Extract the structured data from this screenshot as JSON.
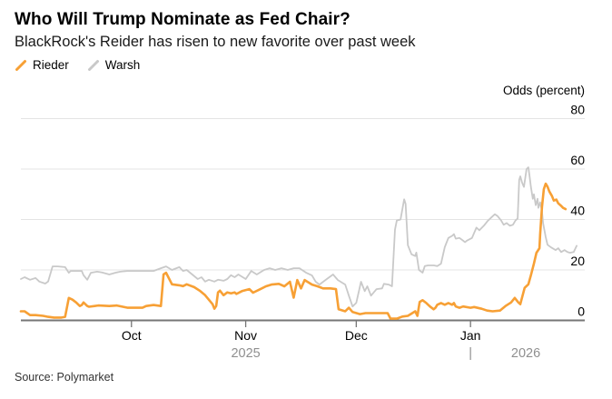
{
  "header": {
    "title": "Who Will Trump Nominate as Fed Chair?",
    "subtitle": "BlackRock's Reider has risen to new favorite over past week"
  },
  "legend": [
    {
      "label": "Rieder",
      "color": "#F7A035"
    },
    {
      "label": "Warsh",
      "color": "#C9C9C9"
    }
  ],
  "axis_title": "Odds (percent)",
  "source": "Source: Polymarket",
  "colors": {
    "rieder_orange": "#F7A035",
    "warsh_gray": "#C9C9C9",
    "gridline": "#E4E4E4",
    "axis": "#767676",
    "tick_label": "#000000",
    "year_label": "#8F8F8F"
  },
  "chart_data": {
    "type": "line",
    "title": "Who Will Trump Nominate as Fed Chair?",
    "subtitle": "BlackRock's Reider has risen to new favorite over past week",
    "ylabel": "Odds (percent)",
    "ylim": [
      0,
      80
    ],
    "y_ticks": [
      0,
      20,
      40,
      60,
      80
    ],
    "grid": "horizontal",
    "legend_position": "top-left",
    "x_domain": [
      "2025-09-01",
      "2026-02-01"
    ],
    "x_unit": "days since 2025-09-01",
    "x_ticks": [
      {
        "day": 30,
        "label": "Oct"
      },
      {
        "day": 61,
        "label": "Nov"
      },
      {
        "day": 91,
        "label": "Dec"
      },
      {
        "day": 122,
        "label": "Jan"
      }
    ],
    "year_labels": [
      {
        "day": 61,
        "label": "2025"
      },
      {
        "day": 122,
        "label": "|"
      },
      {
        "day": 137,
        "label": "2026"
      }
    ],
    "series": [
      {
        "name": "Rieder",
        "color": "#F7A035",
        "width": 2.6,
        "points": [
          [
            0,
            3.6
          ],
          [
            1,
            3.6
          ],
          [
            2.5,
            2.1
          ],
          [
            4,
            2.1
          ],
          [
            6,
            1.8
          ],
          [
            7.4,
            1.4
          ],
          [
            9,
            1.1
          ],
          [
            11,
            1.1
          ],
          [
            12,
            1.4
          ],
          [
            13,
            8.9
          ],
          [
            14,
            8.2
          ],
          [
            15,
            7.1
          ],
          [
            16,
            5.7
          ],
          [
            16.5,
            6.1
          ],
          [
            17,
            7.1
          ],
          [
            18,
            5.7
          ],
          [
            18.5,
            5.4
          ],
          [
            20,
            5.7
          ],
          [
            21,
            5.9
          ],
          [
            24,
            5.7
          ],
          [
            26,
            5.9
          ],
          [
            29,
            5.0
          ],
          [
            31,
            5.0
          ],
          [
            33,
            5.0
          ],
          [
            34,
            5.7
          ],
          [
            36,
            6.1
          ],
          [
            38,
            5.7
          ],
          [
            38.7,
            18.2
          ],
          [
            39.4,
            18.9
          ],
          [
            40,
            17.1
          ],
          [
            41,
            14.3
          ],
          [
            43,
            13.9
          ],
          [
            44,
            13.6
          ],
          [
            45,
            14.3
          ],
          [
            47,
            13.2
          ],
          [
            48.5,
            11.8
          ],
          [
            50,
            10.0
          ],
          [
            52,
            6.4
          ],
          [
            52.5,
            4.6
          ],
          [
            53,
            5.7
          ],
          [
            53.5,
            11.1
          ],
          [
            54,
            11.8
          ],
          [
            55,
            10.0
          ],
          [
            56,
            11.1
          ],
          [
            57,
            10.7
          ],
          [
            58,
            11.1
          ],
          [
            58.5,
            10.5
          ],
          [
            60,
            11.6
          ],
          [
            62,
            12.4
          ],
          [
            63,
            11.0
          ],
          [
            65,
            12.4
          ],
          [
            66.5,
            13.5
          ],
          [
            68,
            14.2
          ],
          [
            70,
            14.5
          ],
          [
            71.5,
            13.5
          ],
          [
            73,
            15.3
          ],
          [
            74,
            9.0
          ],
          [
            75,
            16.0
          ],
          [
            76,
            12.7
          ],
          [
            77,
            16.0
          ],
          [
            79,
            14.2
          ],
          [
            80.5,
            13.5
          ],
          [
            82,
            12.7
          ],
          [
            84,
            12.7
          ],
          [
            85.5,
            12.4
          ],
          [
            86.2,
            4.4
          ],
          [
            88,
            3.6
          ],
          [
            89,
            5.0
          ],
          [
            90,
            3.3
          ],
          [
            92,
            2.5
          ],
          [
            93.5,
            2.9
          ],
          [
            95,
            2.9
          ],
          [
            98,
            2.9
          ],
          [
            99.5,
            2.9
          ],
          [
            100.3,
            0.7
          ],
          [
            102,
            0.7
          ],
          [
            103.5,
            1.5
          ],
          [
            105,
            1.8
          ],
          [
            107,
            3.6
          ],
          [
            107.6,
            1.8
          ],
          [
            108.2,
            7.3
          ],
          [
            109,
            8.0
          ],
          [
            110,
            6.9
          ],
          [
            111,
            5.5
          ],
          [
            112,
            4.4
          ],
          [
            112.5,
            5.0
          ],
          [
            113,
            6.2
          ],
          [
            114,
            6.9
          ],
          [
            115,
            6.2
          ],
          [
            116,
            6.9
          ],
          [
            117,
            6.2
          ],
          [
            117.5,
            6.9
          ],
          [
            118,
            5.5
          ],
          [
            119,
            5.0
          ],
          [
            120,
            5.5
          ],
          [
            122,
            5.0
          ],
          [
            123,
            5.3
          ],
          [
            125,
            4.6
          ],
          [
            126.5,
            3.9
          ],
          [
            128,
            3.6
          ],
          [
            130,
            3.9
          ],
          [
            131.5,
            5.7
          ],
          [
            133,
            7.1
          ],
          [
            134,
            8.9
          ],
          [
            135,
            7.1
          ],
          [
            135.5,
            6.4
          ],
          [
            136.7,
            12.9
          ],
          [
            137.7,
            14.3
          ],
          [
            138.4,
            17.9
          ],
          [
            139.2,
            22.5
          ],
          [
            139.9,
            26.8
          ],
          [
            140.7,
            28.6
          ],
          [
            140.9,
            34.3
          ],
          [
            141.4,
            45.0
          ],
          [
            141.9,
            52.0
          ],
          [
            142.4,
            54.2
          ],
          [
            142.9,
            53.0
          ],
          [
            143.4,
            51.1
          ],
          [
            144.1,
            49.3
          ],
          [
            144.6,
            47.5
          ],
          [
            145.3,
            47.9
          ],
          [
            145.8,
            46.4
          ],
          [
            146.6,
            45.4
          ],
          [
            147.1,
            44.6
          ],
          [
            147.8,
            44.1
          ]
        ]
      },
      {
        "name": "Warsh",
        "color": "#C9C9C9",
        "width": 1.8,
        "points": [
          [
            0,
            16.4
          ],
          [
            1,
            17.1
          ],
          [
            2.5,
            16.1
          ],
          [
            4,
            16.8
          ],
          [
            5,
            15.4
          ],
          [
            6.6,
            14.6
          ],
          [
            7.4,
            15.4
          ],
          [
            8.6,
            21.4
          ],
          [
            10,
            21.4
          ],
          [
            12,
            21.1
          ],
          [
            13,
            18.9
          ],
          [
            13.5,
            19.6
          ],
          [
            15,
            19.6
          ],
          [
            16.5,
            19.6
          ],
          [
            17,
            17.9
          ],
          [
            18,
            16.1
          ],
          [
            19,
            18.9
          ],
          [
            20.7,
            19.3
          ],
          [
            22,
            19.0
          ],
          [
            24,
            18.2
          ],
          [
            25.6,
            18.9
          ],
          [
            27,
            19.3
          ],
          [
            29,
            19.6
          ],
          [
            31,
            19.6
          ],
          [
            34,
            19.6
          ],
          [
            36,
            19.6
          ],
          [
            38,
            20.7
          ],
          [
            39.4,
            21.4
          ],
          [
            41,
            20.0
          ],
          [
            43,
            21.1
          ],
          [
            44,
            19.6
          ],
          [
            45,
            20.0
          ],
          [
            46.5,
            18.2
          ],
          [
            48,
            16.4
          ],
          [
            49,
            17.1
          ],
          [
            50,
            15.4
          ],
          [
            51,
            16.1
          ],
          [
            52.5,
            15.4
          ],
          [
            53.5,
            16.1
          ],
          [
            55,
            15.7
          ],
          [
            56,
            16.4
          ],
          [
            57,
            17.9
          ],
          [
            58,
            17.1
          ],
          [
            59,
            18.2
          ],
          [
            61,
            16.4
          ],
          [
            62.5,
            19.6
          ],
          [
            64,
            18.2
          ],
          [
            66,
            20.0
          ],
          [
            67.5,
            20.7
          ],
          [
            69,
            20.0
          ],
          [
            70.7,
            20.7
          ],
          [
            72.4,
            20.0
          ],
          [
            74,
            20.7
          ],
          [
            75.6,
            20.7
          ],
          [
            77.3,
            19.0
          ],
          [
            79,
            17.8
          ],
          [
            80,
            15.3
          ],
          [
            81,
            14.2
          ],
          [
            83,
            16.4
          ],
          [
            84.7,
            18.2
          ],
          [
            86,
            16.0
          ],
          [
            88,
            14.2
          ],
          [
            89,
            9.8
          ],
          [
            90,
            5.5
          ],
          [
            91,
            7.0
          ],
          [
            92.3,
            15.3
          ],
          [
            93.3,
            11.6
          ],
          [
            94,
            13.5
          ],
          [
            95,
            9.8
          ],
          [
            96.5,
            12.4
          ],
          [
            98,
            12.7
          ],
          [
            98.5,
            14.5
          ],
          [
            99.8,
            14.2
          ],
          [
            100.7,
            13.5
          ],
          [
            101.5,
            36.0
          ],
          [
            102,
            39.6
          ],
          [
            103,
            40.0
          ],
          [
            104,
            48.0
          ],
          [
            104.4,
            46.2
          ],
          [
            105,
            29.8
          ],
          [
            106,
            26.2
          ],
          [
            107,
            25.5
          ],
          [
            107.3,
            26.9
          ],
          [
            108,
            20.0
          ],
          [
            109,
            18.9
          ],
          [
            109.6,
            21.5
          ],
          [
            110.5,
            21.8
          ],
          [
            112,
            21.8
          ],
          [
            113,
            21.5
          ],
          [
            114,
            22.5
          ],
          [
            115,
            29.0
          ],
          [
            116,
            32.7
          ],
          [
            117,
            33.5
          ],
          [
            117.5,
            34.2
          ],
          [
            118,
            32.4
          ],
          [
            119,
            32.7
          ],
          [
            120,
            31.6
          ],
          [
            120.5,
            31.0
          ],
          [
            121,
            31.6
          ],
          [
            122.4,
            32.7
          ],
          [
            123.6,
            36.8
          ],
          [
            124.4,
            35.7
          ],
          [
            125.6,
            37.5
          ],
          [
            126.6,
            39.3
          ],
          [
            127.8,
            41.0
          ],
          [
            128.6,
            42.1
          ],
          [
            129.3,
            41.4
          ],
          [
            130.3,
            39.6
          ],
          [
            131,
            37.9
          ],
          [
            131.8,
            38.6
          ],
          [
            132.7,
            37.5
          ],
          [
            133.5,
            37.9
          ],
          [
            134.2,
            39.6
          ],
          [
            134.8,
            40.4
          ],
          [
            135.2,
            55.7
          ],
          [
            135.5,
            57.1
          ],
          [
            136,
            54.6
          ],
          [
            136.5,
            52.9
          ],
          [
            137.2,
            60.0
          ],
          [
            137.7,
            60.7
          ],
          [
            138,
            57.5
          ],
          [
            138.4,
            52.9
          ],
          [
            138.9,
            48.2
          ],
          [
            139.2,
            50.0
          ],
          [
            139.7,
            45.7
          ],
          [
            140.2,
            48.2
          ],
          [
            140.4,
            44.6
          ],
          [
            140.9,
            46.8
          ],
          [
            141.4,
            43.2
          ],
          [
            141.7,
            38.6
          ],
          [
            142.4,
            33.0
          ],
          [
            142.9,
            30.0
          ],
          [
            143.9,
            28.9
          ],
          [
            145.1,
            27.9
          ],
          [
            145.8,
            28.6
          ],
          [
            146.6,
            27.1
          ],
          [
            147.5,
            27.9
          ],
          [
            148.3,
            27.1
          ],
          [
            149.0,
            26.8
          ],
          [
            150.0,
            27.1
          ],
          [
            150.8,
            29.6
          ]
        ]
      }
    ]
  }
}
